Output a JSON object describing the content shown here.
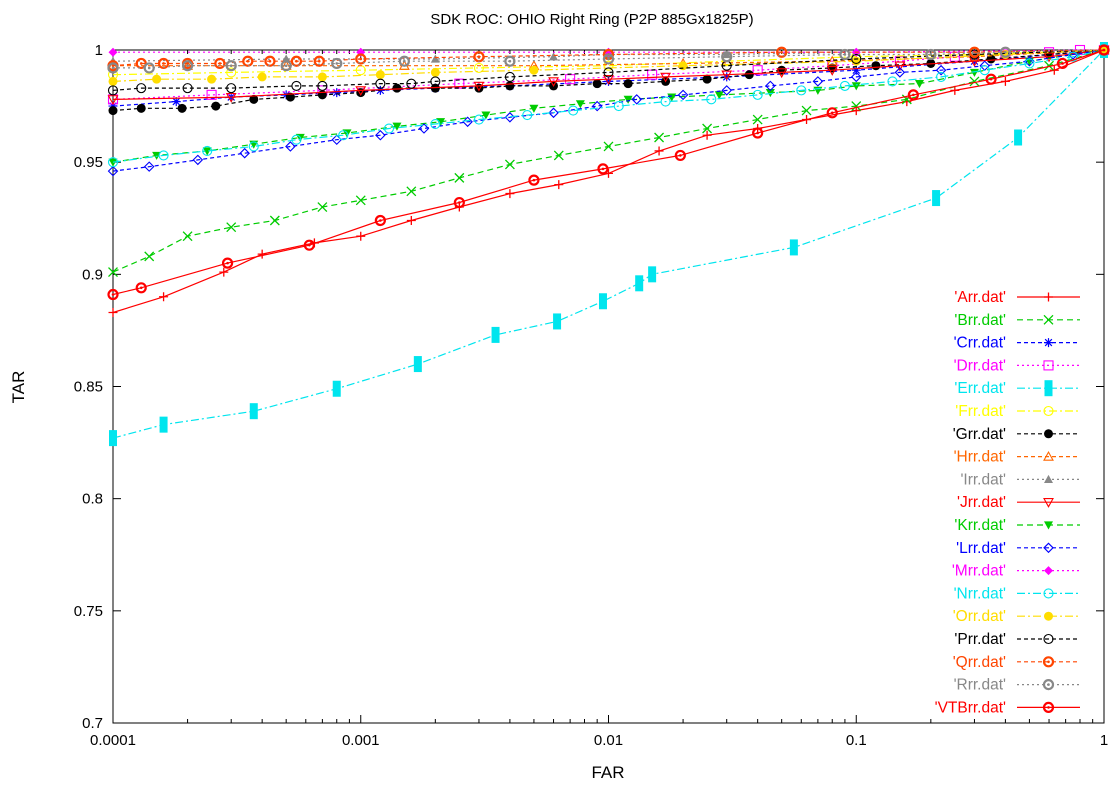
{
  "chart_data": {
    "type": "line",
    "title": "SDK ROC: OHIO Right Ring (P2P 885Gx1825P)",
    "xlabel": "FAR",
    "ylabel": "TAR",
    "xscale": "log",
    "xlim": [
      0.0001,
      1
    ],
    "ylim": [
      0.7,
      1
    ],
    "xticks": [
      0.0001,
      0.001,
      0.01,
      0.1,
      1
    ],
    "xtick_labels": [
      "0.0001",
      "0.001",
      "0.01",
      "0.1",
      "1"
    ],
    "yticks": [
      0.7,
      0.75,
      0.8,
      0.85,
      0.9,
      0.95,
      1
    ],
    "ytick_labels": [
      "0.7",
      "0.75",
      "0.8",
      "0.85",
      "0.9",
      "0.95",
      "1"
    ],
    "grid": false,
    "legend_position": "bottom-right",
    "series": [
      {
        "name": "'Arr.dat'",
        "color": "#ff0000",
        "dash": "",
        "marker": "plus",
        "x": [
          0.0001,
          0.00016,
          0.00028,
          0.0004,
          0.00065,
          0.001,
          0.0016,
          0.0025,
          0.004,
          0.0063,
          0.01,
          0.016,
          0.025,
          0.04,
          0.063,
          0.1,
          0.16,
          0.25,
          0.4,
          0.63,
          1
        ],
        "y": [
          0.883,
          0.89,
          0.901,
          0.909,
          0.914,
          0.917,
          0.924,
          0.93,
          0.936,
          0.94,
          0.945,
          0.955,
          0.962,
          0.965,
          0.969,
          0.973,
          0.977,
          0.982,
          0.986,
          0.991,
          1.0
        ]
      },
      {
        "name": "'Brr.dat'",
        "color": "#00cc00",
        "dash": "6,4",
        "marker": "x",
        "x": [
          0.0001,
          0.00014,
          0.0002,
          0.0003,
          0.00045,
          0.0007,
          0.001,
          0.0016,
          0.0025,
          0.004,
          0.0063,
          0.01,
          0.016,
          0.025,
          0.04,
          0.063,
          0.1,
          0.16,
          0.3,
          0.6,
          1
        ],
        "y": [
          0.901,
          0.908,
          0.917,
          0.921,
          0.924,
          0.93,
          0.933,
          0.937,
          0.943,
          0.949,
          0.953,
          0.957,
          0.961,
          0.965,
          0.969,
          0.973,
          0.975,
          0.978,
          0.986,
          0.993,
          1.0
        ]
      },
      {
        "name": "'Crr.dat'",
        "color": "#0000ff",
        "dash": "4,3",
        "marker": "star",
        "x": [
          0.0001,
          0.00018,
          0.0003,
          0.0005,
          0.0008,
          0.0012,
          0.002,
          0.004,
          0.01,
          0.03,
          0.1,
          0.3,
          1
        ],
        "y": [
          0.975,
          0.977,
          0.979,
          0.98,
          0.981,
          0.982,
          0.983,
          0.984,
          0.986,
          0.988,
          0.991,
          0.995,
          1.0
        ]
      },
      {
        "name": "'Drr.dat'",
        "color": "#ff00ff",
        "dash": "2,3",
        "marker": "square",
        "x": [
          0.0001,
          0.00025,
          0.0007,
          0.0025,
          0.007,
          0.015,
          0.04,
          0.08,
          0.15,
          0.25,
          0.4,
          0.6,
          0.8,
          1
        ],
        "y": [
          0.978,
          0.98,
          0.982,
          0.985,
          0.987,
          0.989,
          0.991,
          0.993,
          0.995,
          0.997,
          0.998,
          0.999,
          1.0,
          1.0
        ]
      },
      {
        "name": "'Err.dat'",
        "color": "#00e5ee",
        "dash": "8,3,2,3",
        "marker": "box",
        "x": [
          0.0001,
          0.00016,
          0.00037,
          0.0008,
          0.0017,
          0.0035,
          0.0062,
          0.0095,
          0.0133,
          0.015,
          0.056,
          0.21,
          0.45,
          1
        ],
        "y": [
          0.827,
          0.833,
          0.839,
          0.849,
          0.86,
          0.873,
          0.879,
          0.888,
          0.896,
          0.9,
          0.912,
          0.934,
          0.961,
          1.0
        ]
      },
      {
        "name": "'Frr.dat'",
        "color": "#ffff00",
        "dash": "8,3,2,3",
        "marker": "circle",
        "x": [
          0.0001,
          0.0003,
          0.001,
          0.003,
          0.01,
          0.03,
          0.1,
          0.3,
          1
        ],
        "y": [
          0.989,
          0.99,
          0.991,
          0.992,
          0.993,
          0.995,
          0.997,
          0.998,
          1.0
        ]
      },
      {
        "name": "'Grr.dat'",
        "color": "#000000",
        "dash": "4,3",
        "marker": "dot",
        "x": [
          0.0001,
          0.00013,
          0.00019,
          0.00026,
          0.00037,
          0.00052,
          0.0007,
          0.001,
          0.0014,
          0.002,
          0.003,
          0.004,
          0.006,
          0.009,
          0.012,
          0.017,
          0.025,
          0.037,
          0.05,
          0.08,
          0.12,
          0.2,
          0.35,
          0.6,
          1
        ],
        "y": [
          0.973,
          0.974,
          0.974,
          0.975,
          0.978,
          0.979,
          0.98,
          0.981,
          0.983,
          0.983,
          0.983,
          0.984,
          0.984,
          0.985,
          0.985,
          0.986,
          0.987,
          0.989,
          0.991,
          0.992,
          0.993,
          0.994,
          0.996,
          0.998,
          1.0
        ]
      },
      {
        "name": "'Hrr.dat'",
        "color": "#ff6600",
        "dash": "4,3",
        "marker": "triangle",
        "x": [
          0.0001,
          0.0002,
          0.0005,
          0.0015,
          0.005,
          0.02,
          0.08,
          0.3,
          1
        ],
        "y": [
          0.993,
          0.993,
          0.993,
          0.993,
          0.993,
          0.994,
          0.995,
          0.997,
          1.0
        ]
      },
      {
        "name": "'Irr.dat'",
        "color": "#888888",
        "dash": "2,3",
        "marker": "triangle-filled",
        "x": [
          0.0001,
          0.0005,
          0.002,
          0.006,
          0.01,
          0.03,
          0.1,
          0.3,
          1
        ],
        "y": [
          0.995,
          0.996,
          0.996,
          0.997,
          0.998,
          0.998,
          0.999,
          0.999,
          1.0
        ]
      },
      {
        "name": "'Jrr.dat'",
        "color": "#ff0000",
        "dash": "",
        "marker": "triangle-down",
        "x": [
          0.0001,
          0.0003,
          0.001,
          0.003,
          0.006,
          0.01,
          0.017,
          0.03,
          0.05,
          0.08,
          0.15,
          0.3,
          0.6,
          1
        ],
        "y": [
          0.978,
          0.979,
          0.982,
          0.984,
          0.986,
          0.987,
          0.988,
          0.989,
          0.99,
          0.991,
          0.993,
          0.995,
          0.997,
          1.0
        ]
      },
      {
        "name": "'Krr.dat'",
        "color": "#00cc00",
        "dash": "6,4",
        "marker": "triangle-down-filled",
        "x": [
          0.0001,
          0.00015,
          0.00024,
          0.00037,
          0.00057,
          0.00088,
          0.0014,
          0.0021,
          0.0032,
          0.005,
          0.0077,
          0.012,
          0.018,
          0.028,
          0.045,
          0.07,
          0.1,
          0.18,
          0.3,
          0.5,
          1
        ],
        "y": [
          0.95,
          0.953,
          0.955,
          0.958,
          0.961,
          0.963,
          0.966,
          0.968,
          0.971,
          0.974,
          0.976,
          0.978,
          0.979,
          0.98,
          0.981,
          0.982,
          0.984,
          0.985,
          0.99,
          0.995,
          1.0
        ]
      },
      {
        "name": "'Lrr.dat'",
        "color": "#0000ff",
        "dash": "4,3",
        "marker": "diamond",
        "x": [
          0.0001,
          0.00014,
          0.00022,
          0.00034,
          0.00052,
          0.0008,
          0.0012,
          0.0018,
          0.0027,
          0.004,
          0.006,
          0.009,
          0.013,
          0.02,
          0.03,
          0.045,
          0.07,
          0.1,
          0.15,
          0.22,
          0.33,
          0.5,
          0.75,
          1
        ],
        "y": [
          0.946,
          0.948,
          0.951,
          0.954,
          0.957,
          0.96,
          0.962,
          0.965,
          0.968,
          0.97,
          0.972,
          0.975,
          0.978,
          0.98,
          0.982,
          0.984,
          0.986,
          0.988,
          0.99,
          0.991,
          0.993,
          0.995,
          0.998,
          1.0
        ]
      },
      {
        "name": "'Mrr.dat'",
        "color": "#ff00ff",
        "dash": "2,3",
        "marker": "diamond-filled",
        "x": [
          0.0001,
          0.001,
          0.01,
          0.1,
          1
        ],
        "y": [
          0.999,
          0.999,
          0.999,
          0.999,
          1.0
        ]
      },
      {
        "name": "'Nrr.dat'",
        "color": "#00e5ee",
        "dash": "8,3,2,3",
        "marker": "circle",
        "x": [
          0.0001,
          0.00016,
          0.00024,
          0.00037,
          0.00055,
          0.00085,
          0.0013,
          0.002,
          0.003,
          0.0047,
          0.0072,
          0.011,
          0.017,
          0.026,
          0.04,
          0.06,
          0.09,
          0.14,
          0.22,
          0.33,
          0.5,
          0.75,
          1
        ],
        "y": [
          0.95,
          0.953,
          0.955,
          0.957,
          0.96,
          0.962,
          0.965,
          0.967,
          0.969,
          0.971,
          0.973,
          0.975,
          0.977,
          0.978,
          0.98,
          0.982,
          0.984,
          0.986,
          0.988,
          0.991,
          0.994,
          0.997,
          1.0
        ]
      },
      {
        "name": "'Orr.dat'",
        "color": "#ffdd00",
        "dash": "8,3,2,3",
        "marker": "dot",
        "x": [
          0.0001,
          0.00015,
          0.00025,
          0.0004,
          0.0007,
          0.0012,
          0.002,
          0.005,
          0.02,
          0.1,
          0.4,
          1
        ],
        "y": [
          0.986,
          0.987,
          0.987,
          0.988,
          0.988,
          0.989,
          0.99,
          0.991,
          0.993,
          0.995,
          0.998,
          1.0
        ]
      },
      {
        "name": "'Prr.dat'",
        "color": "#000000",
        "dash": "4,3",
        "marker": "circle",
        "x": [
          0.0001,
          0.00013,
          0.0002,
          0.0003,
          0.00055,
          0.0007,
          0.0012,
          0.0016,
          0.002,
          0.004,
          0.01,
          0.03,
          0.1,
          0.3,
          1
        ],
        "y": [
          0.982,
          0.983,
          0.983,
          0.983,
          0.984,
          0.984,
          0.985,
          0.985,
          0.986,
          0.988,
          0.99,
          0.993,
          0.996,
          0.998,
          1.0
        ]
      },
      {
        "name": "'Qrr.dat'",
        "color": "#ff4500",
        "dash": "4,3",
        "marker": "circle-thick",
        "x": [
          0.0001,
          0.00013,
          0.00016,
          0.0002,
          0.00027,
          0.00035,
          0.00043,
          0.00055,
          0.00068,
          0.001,
          0.003,
          0.01,
          0.05,
          0.3,
          1
        ],
        "y": [
          0.993,
          0.994,
          0.994,
          0.994,
          0.994,
          0.995,
          0.995,
          0.995,
          0.995,
          0.996,
          0.997,
          0.998,
          0.999,
          0.999,
          1.0
        ]
      },
      {
        "name": "'Rrr.dat'",
        "color": "#888888",
        "dash": "2,3",
        "marker": "circle-thick",
        "x": [
          0.0001,
          0.00014,
          0.0002,
          0.0003,
          0.0005,
          0.0008,
          0.0015,
          0.004,
          0.01,
          0.03,
          0.09,
          0.2,
          0.4,
          1
        ],
        "y": [
          0.992,
          0.992,
          0.993,
          0.993,
          0.993,
          0.994,
          0.995,
          0.995,
          0.996,
          0.997,
          0.998,
          0.998,
          0.999,
          1.0
        ]
      },
      {
        "name": "'VTBrr.dat'",
        "color": "#ff0000",
        "dash": "",
        "marker": "circle-thick",
        "x": [
          0.0001,
          0.00013,
          0.00029,
          0.00062,
          0.0012,
          0.0025,
          0.005,
          0.0095,
          0.0195,
          0.04,
          0.08,
          0.17,
          0.35,
          0.68,
          1
        ],
        "y": [
          0.891,
          0.894,
          0.905,
          0.913,
          0.924,
          0.932,
          0.942,
          0.947,
          0.953,
          0.963,
          0.972,
          0.98,
          0.987,
          0.994,
          1.0
        ]
      }
    ]
  }
}
